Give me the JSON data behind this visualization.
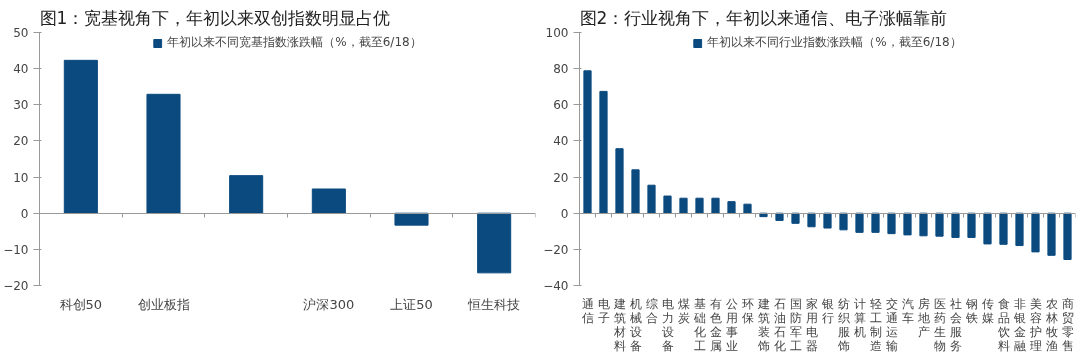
{
  "chart_data": [
    {
      "type": "bar",
      "title": "图1：宽基视角下，年初以来双创指数明显占优",
      "categories": [
        "科创50",
        "创业板指",
        null,
        "沪深300",
        "上证50",
        "恒生科技"
      ],
      "series": [
        {
          "name": "年初以来不同宽基指数涨跌幅（%，截至6/18）",
          "color": "#0b4a7f",
          "values": [
            42.3,
            32.9,
            10.4,
            6.7,
            -3.3,
            -16.5
          ]
        }
      ],
      "ylim": [
        -20,
        50
      ],
      "yticks": [
        -20,
        -10,
        0,
        10,
        20,
        30,
        40,
        50
      ],
      "legend": "top"
    },
    {
      "type": "bar",
      "title": "图2：行业视角下，年初以来通信、电子涨幅靠前",
      "categories": [
        "通信",
        "电子",
        "建筑材料",
        "机械设备",
        "综合",
        "电力设备",
        "煤炭",
        "基础化工",
        "有色金属",
        "公用事业",
        "环保",
        "建筑装饰",
        "石油石化",
        "国防军工",
        "家用电器",
        "银行",
        "纺织服饰",
        "计算机",
        "轻工制造",
        "交通运输",
        "汽车",
        "房地产",
        "医药生物",
        "社会服务",
        "钢铁",
        "传媒",
        "食品饮料",
        "非银金融",
        "美容护理",
        "农林牧渔",
        "商贸零售"
      ],
      "series": [
        {
          "name": "年初以来不同行业指数涨跌幅（%，截至6/18）",
          "color": "#0b4a7f",
          "values": [
            78.8,
            67.4,
            35.7,
            24,
            15.5,
            9.5,
            8.3,
            8.3,
            8.3,
            6.4,
            5,
            -1.9,
            -4,
            -5.6,
            -7.5,
            -8.2,
            -9.2,
            -10.6,
            -10.6,
            -11.3,
            -12,
            -12.5,
            -12.7,
            -13.4,
            -13.4,
            -17,
            -17.2,
            -17.9,
            -21.4,
            -23.3,
            -25.6
          ]
        }
      ],
      "ylim": [
        -40,
        100
      ],
      "yticks": [
        -40,
        -20,
        0,
        20,
        40,
        60,
        80,
        100
      ],
      "legend": "top"
    }
  ]
}
